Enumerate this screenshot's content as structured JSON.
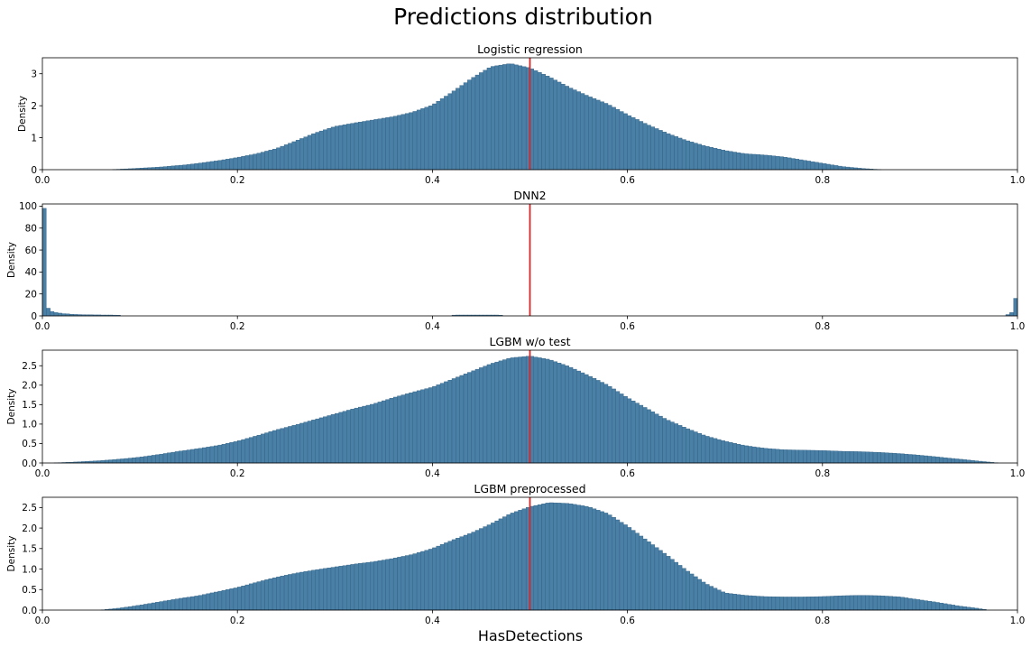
{
  "figure": {
    "title": "Predictions distribution",
    "xlabel": "HasDetections"
  },
  "colors": {
    "bar_fill": "#4a7fa6",
    "bar_edge": "#2f5f82",
    "threshold_line": "#d62728",
    "axis": "#000000"
  },
  "chart_data": [
    {
      "type": "bar",
      "title": "Logistic regression",
      "ylabel": "Density",
      "xlim": [
        0,
        1
      ],
      "ylim": [
        0,
        3.5
      ],
      "xticks": [
        0.0,
        0.2,
        0.4,
        0.6,
        0.8,
        1.0
      ],
      "xtick_labels": [
        "0.0",
        "0.2",
        "0.4",
        "0.6",
        "0.8",
        "1.0"
      ],
      "yticks": [
        0,
        1,
        2,
        3
      ],
      "ytick_labels": [
        "0",
        "1",
        "2",
        "3"
      ],
      "threshold": 0.5,
      "curve": [
        [
          0.07,
          0.0
        ],
        [
          0.09,
          0.03
        ],
        [
          0.12,
          0.08
        ],
        [
          0.15,
          0.16
        ],
        [
          0.18,
          0.28
        ],
        [
          0.2,
          0.38
        ],
        [
          0.22,
          0.5
        ],
        [
          0.24,
          0.66
        ],
        [
          0.26,
          0.9
        ],
        [
          0.28,
          1.15
        ],
        [
          0.3,
          1.35
        ],
        [
          0.32,
          1.46
        ],
        [
          0.34,
          1.56
        ],
        [
          0.36,
          1.66
        ],
        [
          0.38,
          1.8
        ],
        [
          0.4,
          2.02
        ],
        [
          0.42,
          2.42
        ],
        [
          0.44,
          2.85
        ],
        [
          0.46,
          3.22
        ],
        [
          0.48,
          3.32
        ],
        [
          0.5,
          3.18
        ],
        [
          0.52,
          2.9
        ],
        [
          0.54,
          2.58
        ],
        [
          0.56,
          2.3
        ],
        [
          0.58,
          2.05
        ],
        [
          0.6,
          1.72
        ],
        [
          0.62,
          1.42
        ],
        [
          0.64,
          1.15
        ],
        [
          0.66,
          0.92
        ],
        [
          0.68,
          0.74
        ],
        [
          0.7,
          0.6
        ],
        [
          0.72,
          0.5
        ],
        [
          0.74,
          0.46
        ],
        [
          0.76,
          0.4
        ],
        [
          0.78,
          0.3
        ],
        [
          0.8,
          0.2
        ],
        [
          0.82,
          0.1
        ],
        [
          0.84,
          0.04
        ],
        [
          0.86,
          0.0
        ]
      ]
    },
    {
      "type": "bar",
      "title": "DNN2",
      "ylabel": "Density",
      "xlim": [
        0,
        1
      ],
      "ylim": [
        0,
        102
      ],
      "xticks": [
        0.0,
        0.2,
        0.4,
        0.6,
        0.8,
        1.0
      ],
      "xtick_labels": [
        "0.0",
        "0.2",
        "0.4",
        "0.6",
        "0.8",
        "1.0"
      ],
      "yticks": [
        0,
        20,
        40,
        60,
        80,
        100
      ],
      "ytick_labels": [
        "0",
        "20",
        "40",
        "60",
        "80",
        "100"
      ],
      "threshold": 0.5,
      "bars": [
        [
          0.0,
          98
        ],
        [
          0.004,
          7
        ],
        [
          0.008,
          4
        ],
        [
          0.012,
          3
        ],
        [
          0.016,
          2.5
        ],
        [
          0.02,
          2
        ],
        [
          0.024,
          1.8
        ],
        [
          0.028,
          1.5
        ],
        [
          0.032,
          1.3
        ],
        [
          0.036,
          1.2
        ],
        [
          0.04,
          1.1
        ],
        [
          0.044,
          1.0
        ],
        [
          0.048,
          1.0
        ],
        [
          0.052,
          0.9
        ],
        [
          0.056,
          0.9
        ],
        [
          0.06,
          0.8
        ],
        [
          0.064,
          0.8
        ],
        [
          0.068,
          0.8
        ],
        [
          0.072,
          0.7
        ],
        [
          0.076,
          0.6
        ],
        [
          0.42,
          0.7
        ],
        [
          0.424,
          0.8
        ],
        [
          0.428,
          0.8
        ],
        [
          0.432,
          0.8
        ],
        [
          0.436,
          0.8
        ],
        [
          0.44,
          0.8
        ],
        [
          0.444,
          0.8
        ],
        [
          0.448,
          0.8
        ],
        [
          0.452,
          0.8
        ],
        [
          0.456,
          0.8
        ],
        [
          0.46,
          0.8
        ],
        [
          0.464,
          0.8
        ],
        [
          0.468,
          0.6
        ],
        [
          0.988,
          1.2
        ],
        [
          0.992,
          3
        ],
        [
          0.996,
          16
        ]
      ]
    },
    {
      "type": "bar",
      "title": "LGBM w/o test",
      "ylabel": "Density",
      "xlim": [
        0,
        1
      ],
      "ylim": [
        0,
        2.9
      ],
      "xticks": [
        0.0,
        0.2,
        0.4,
        0.6,
        0.8,
        1.0
      ],
      "xtick_labels": [
        "0.0",
        "0.2",
        "0.4",
        "0.6",
        "0.8",
        "1.0"
      ],
      "yticks": [
        0.0,
        0.5,
        1.0,
        1.5,
        2.0,
        2.5
      ],
      "ytick_labels": [
        "0.0",
        "0.5",
        "1.0",
        "1.5",
        "2.0",
        "2.5"
      ],
      "threshold": 0.5,
      "curve": [
        [
          0.01,
          0.0
        ],
        [
          0.03,
          0.02
        ],
        [
          0.06,
          0.06
        ],
        [
          0.08,
          0.1
        ],
        [
          0.1,
          0.15
        ],
        [
          0.12,
          0.22
        ],
        [
          0.14,
          0.3
        ],
        [
          0.16,
          0.37
        ],
        [
          0.18,
          0.45
        ],
        [
          0.2,
          0.56
        ],
        [
          0.22,
          0.7
        ],
        [
          0.24,
          0.85
        ],
        [
          0.26,
          0.98
        ],
        [
          0.28,
          1.12
        ],
        [
          0.3,
          1.26
        ],
        [
          0.32,
          1.4
        ],
        [
          0.34,
          1.52
        ],
        [
          0.36,
          1.68
        ],
        [
          0.38,
          1.82
        ],
        [
          0.4,
          1.95
        ],
        [
          0.42,
          2.15
        ],
        [
          0.44,
          2.35
        ],
        [
          0.46,
          2.55
        ],
        [
          0.48,
          2.7
        ],
        [
          0.5,
          2.75
        ],
        [
          0.52,
          2.66
        ],
        [
          0.54,
          2.48
        ],
        [
          0.56,
          2.25
        ],
        [
          0.58,
          2.0
        ],
        [
          0.6,
          1.68
        ],
        [
          0.62,
          1.4
        ],
        [
          0.64,
          1.12
        ],
        [
          0.66,
          0.9
        ],
        [
          0.68,
          0.7
        ],
        [
          0.7,
          0.56
        ],
        [
          0.72,
          0.45
        ],
        [
          0.74,
          0.38
        ],
        [
          0.76,
          0.34
        ],
        [
          0.78,
          0.33
        ],
        [
          0.8,
          0.32
        ],
        [
          0.82,
          0.3
        ],
        [
          0.84,
          0.29
        ],
        [
          0.86,
          0.27
        ],
        [
          0.88,
          0.24
        ],
        [
          0.9,
          0.2
        ],
        [
          0.92,
          0.15
        ],
        [
          0.94,
          0.1
        ],
        [
          0.96,
          0.05
        ],
        [
          0.98,
          0.0
        ]
      ]
    },
    {
      "type": "bar",
      "title": "LGBM preprocessed",
      "ylabel": "Density",
      "xlim": [
        0,
        1
      ],
      "ylim": [
        0,
        2.75
      ],
      "xticks": [
        0.0,
        0.2,
        0.4,
        0.6,
        0.8,
        1.0
      ],
      "xtick_labels": [
        "0.0",
        "0.2",
        "0.4",
        "0.6",
        "0.8",
        "1.0"
      ],
      "yticks": [
        0.0,
        0.5,
        1.0,
        1.5,
        2.0,
        2.5
      ],
      "ytick_labels": [
        "0.0",
        "0.5",
        "1.0",
        "1.5",
        "2.0",
        "2.5"
      ],
      "threshold": 0.5,
      "curve": [
        [
          0.06,
          0.0
        ],
        [
          0.08,
          0.05
        ],
        [
          0.1,
          0.12
        ],
        [
          0.12,
          0.2
        ],
        [
          0.14,
          0.28
        ],
        [
          0.16,
          0.35
        ],
        [
          0.18,
          0.45
        ],
        [
          0.2,
          0.55
        ],
        [
          0.22,
          0.68
        ],
        [
          0.24,
          0.8
        ],
        [
          0.26,
          0.9
        ],
        [
          0.28,
          0.98
        ],
        [
          0.3,
          1.05
        ],
        [
          0.32,
          1.12
        ],
        [
          0.34,
          1.18
        ],
        [
          0.36,
          1.26
        ],
        [
          0.38,
          1.36
        ],
        [
          0.4,
          1.5
        ],
        [
          0.42,
          1.7
        ],
        [
          0.44,
          1.88
        ],
        [
          0.46,
          2.1
        ],
        [
          0.48,
          2.35
        ],
        [
          0.5,
          2.52
        ],
        [
          0.52,
          2.62
        ],
        [
          0.54,
          2.6
        ],
        [
          0.56,
          2.52
        ],
        [
          0.58,
          2.35
        ],
        [
          0.6,
          2.05
        ],
        [
          0.62,
          1.7
        ],
        [
          0.64,
          1.35
        ],
        [
          0.66,
          0.98
        ],
        [
          0.68,
          0.65
        ],
        [
          0.7,
          0.42
        ],
        [
          0.72,
          0.36
        ],
        [
          0.74,
          0.33
        ],
        [
          0.76,
          0.32
        ],
        [
          0.78,
          0.32
        ],
        [
          0.8,
          0.33
        ],
        [
          0.82,
          0.35
        ],
        [
          0.84,
          0.36
        ],
        [
          0.86,
          0.35
        ],
        [
          0.88,
          0.32
        ],
        [
          0.9,
          0.25
        ],
        [
          0.92,
          0.18
        ],
        [
          0.94,
          0.1
        ],
        [
          0.96,
          0.04
        ],
        [
          0.97,
          0.0
        ]
      ]
    }
  ]
}
